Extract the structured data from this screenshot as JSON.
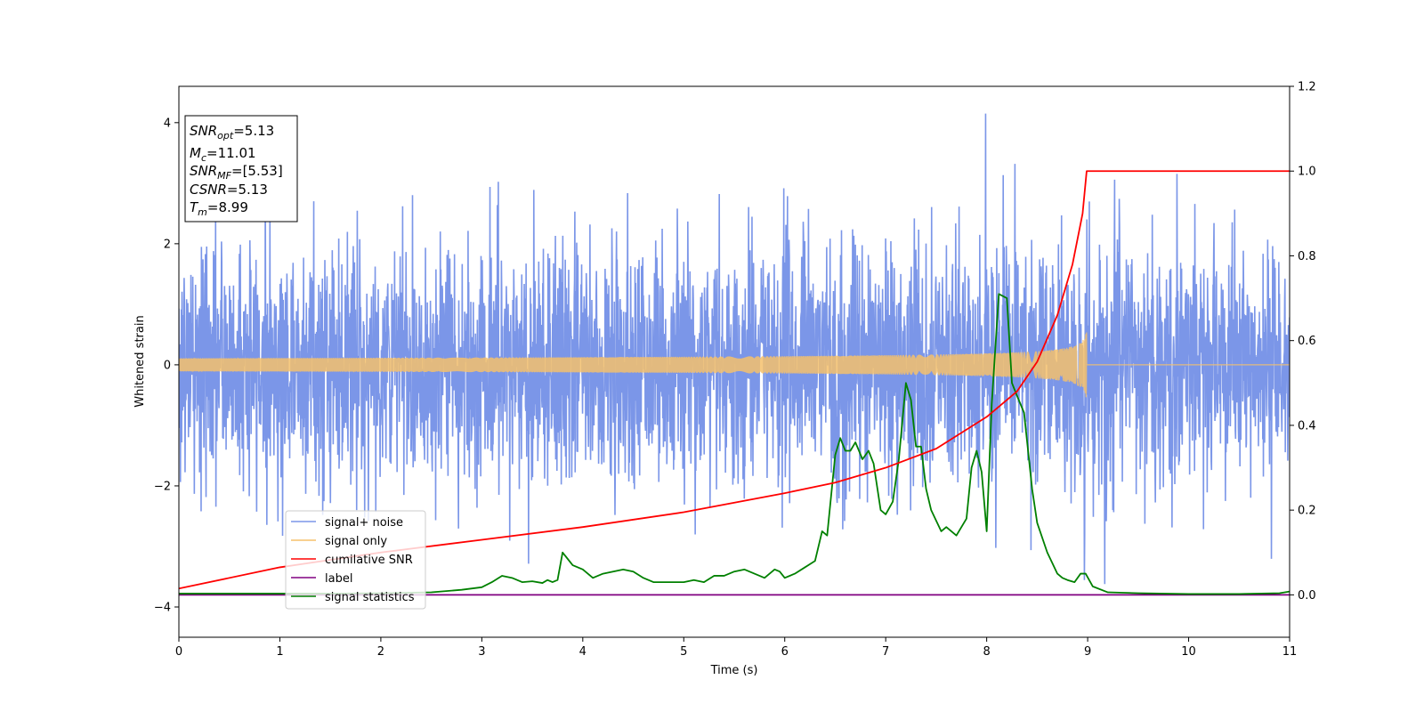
{
  "chart_data": {
    "type": "line",
    "xlabel": "Time (s)",
    "ylabel": "Whitened strain",
    "xlim": [
      0,
      11
    ],
    "ylim": [
      -4.5,
      4.6
    ],
    "y2lim": [
      -0.1,
      1.2
    ],
    "grid": false,
    "legend_position": "lower-left",
    "x_ticks": [
      "0",
      "1",
      "2",
      "3",
      "4",
      "5",
      "6",
      "7",
      "8",
      "9",
      "10",
      "11"
    ],
    "y_ticks": [
      "−4",
      "−2",
      "0",
      "2",
      "4"
    ],
    "y2_ticks": [
      "0.0",
      "0.2",
      "0.4",
      "0.6",
      "0.8",
      "1.0",
      "1.2"
    ],
    "annotation": {
      "snr_opt": {
        "symbol": "SNR",
        "sub": "opt",
        "value": "=5.13"
      },
      "mc": {
        "symbol": "M",
        "sub": "c",
        "value": "=11.01"
      },
      "snr_mf": {
        "symbol": "SNR",
        "sub": "MF",
        "value": "=[5.53]"
      },
      "csnr": {
        "symbol": "CSNR",
        "value": "=5.13"
      },
      "tm": {
        "symbol": "T",
        "sub": "m",
        "value": "=8.99"
      }
    },
    "series": [
      {
        "name": "signal+ noise",
        "color": "#7b96e8",
        "axis": "left",
        "kind": "gaussian noise, std ≈ 1, amplitude mostly within ±2.5, peaks up to 4.15 near t = 8.0",
        "noise_std": 1.0
      },
      {
        "name": "signal only",
        "color": "#f5c16c",
        "axis": "left",
        "kind": "chirp",
        "end_time": 8.99,
        "end_amplitude": 0.6
      },
      {
        "name": "cumilative SNR",
        "color": "#ff0000",
        "axis": "right",
        "x": [
          0,
          1,
          2,
          3,
          4,
          5,
          6,
          6.5,
          7,
          7.5,
          8,
          8.3,
          8.5,
          8.7,
          8.85,
          8.95,
          8.99,
          11
        ],
        "y": [
          0.015,
          0.065,
          0.1,
          0.13,
          0.16,
          0.195,
          0.24,
          0.265,
          0.3,
          0.345,
          0.42,
          0.48,
          0.55,
          0.66,
          0.78,
          0.9,
          1.0,
          1.0
        ]
      },
      {
        "name": "label",
        "color": "#800080",
        "axis": "right",
        "x": [
          0,
          11
        ],
        "y": [
          0.0,
          0.0
        ]
      },
      {
        "name": "signal statistics",
        "color": "#008000",
        "axis": "right",
        "x": [
          0,
          0.5,
          1,
          1.5,
          2,
          2.5,
          2.8,
          3.0,
          3.1,
          3.2,
          3.3,
          3.4,
          3.5,
          3.6,
          3.65,
          3.7,
          3.75,
          3.8,
          3.9,
          4.0,
          4.1,
          4.2,
          4.3,
          4.4,
          4.5,
          4.6,
          4.7,
          4.8,
          5.0,
          5.1,
          5.2,
          5.3,
          5.4,
          5.5,
          5.6,
          5.7,
          5.8,
          5.85,
          5.9,
          5.95,
          6.0,
          6.1,
          6.2,
          6.3,
          6.37,
          6.42,
          6.5,
          6.55,
          6.6,
          6.65,
          6.7,
          6.77,
          6.83,
          6.88,
          6.95,
          7.0,
          7.07,
          7.13,
          7.2,
          7.25,
          7.3,
          7.35,
          7.4,
          7.45,
          7.55,
          7.6,
          7.7,
          7.8,
          7.85,
          7.9,
          7.95,
          8.0,
          8.05,
          8.12,
          8.2,
          8.25,
          8.3,
          8.37,
          8.45,
          8.5,
          8.6,
          8.7,
          8.75,
          8.8,
          8.87,
          8.93,
          8.98,
          9.05,
          9.2,
          9.5,
          10.0,
          10.5,
          10.9,
          11.0
        ],
        "y": [
          0.003,
          0.003,
          0.003,
          0.003,
          0.004,
          0.006,
          0.012,
          0.018,
          0.03,
          0.045,
          0.04,
          0.03,
          0.032,
          0.028,
          0.035,
          0.03,
          0.035,
          0.1,
          0.07,
          0.06,
          0.04,
          0.05,
          0.055,
          0.06,
          0.055,
          0.04,
          0.03,
          0.03,
          0.03,
          0.035,
          0.03,
          0.045,
          0.045,
          0.055,
          0.06,
          0.05,
          0.04,
          0.05,
          0.06,
          0.055,
          0.04,
          0.05,
          0.065,
          0.08,
          0.15,
          0.14,
          0.33,
          0.37,
          0.34,
          0.34,
          0.36,
          0.32,
          0.34,
          0.31,
          0.2,
          0.19,
          0.22,
          0.32,
          0.5,
          0.46,
          0.35,
          0.35,
          0.25,
          0.2,
          0.15,
          0.16,
          0.14,
          0.18,
          0.3,
          0.34,
          0.29,
          0.15,
          0.45,
          0.71,
          0.7,
          0.5,
          0.47,
          0.43,
          0.25,
          0.17,
          0.1,
          0.05,
          0.04,
          0.035,
          0.03,
          0.05,
          0.05,
          0.02,
          0.006,
          0.004,
          0.002,
          0.002,
          0.004,
          0.008
        ]
      }
    ]
  }
}
